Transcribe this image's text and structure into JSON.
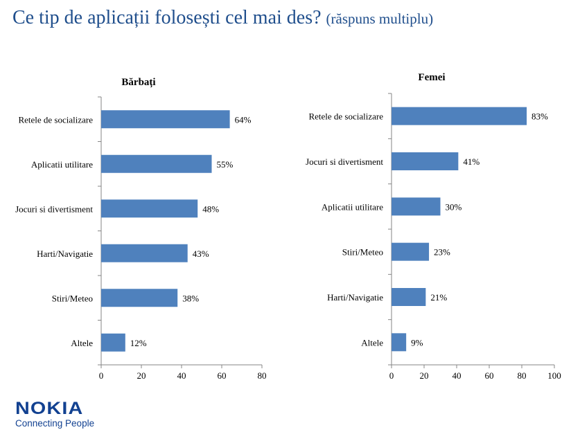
{
  "title": {
    "main": "Ce tip de aplicații folosești cel mai des?",
    "sub": "(răspuns multiplu)"
  },
  "logo": {
    "brand": "NOKIA",
    "tagline": "Connecting People"
  },
  "colors": {
    "bar": "#4f81bd",
    "title": "#1f4e8c",
    "axis": "#868686"
  },
  "chart_data": [
    {
      "type": "bar",
      "orientation": "horizontal",
      "title": "Bărbați",
      "categories": [
        "Retele de socializare",
        "Aplicatii utilitare",
        "Jocuri si divertisment",
        "Harti/Navigatie",
        "Stiri/Meteo",
        "Altele"
      ],
      "values": [
        64,
        55,
        48,
        43,
        38,
        12
      ],
      "data_labels": [
        "64%",
        "55%",
        "48%",
        "43%",
        "38%",
        "12%"
      ],
      "xlim": [
        0,
        80
      ],
      "xticks": [
        0,
        20,
        40,
        60,
        80
      ],
      "grid": false
    },
    {
      "type": "bar",
      "orientation": "horizontal",
      "title": "Femei",
      "categories": [
        "Retele de socializare",
        "Jocuri si divertisment",
        "Aplicatii utilitare",
        "Stiri/Meteo",
        "Harti/Navigatie",
        "Altele"
      ],
      "values": [
        83,
        41,
        30,
        23,
        21,
        9
      ],
      "data_labels": [
        "83%",
        "41%",
        "30%",
        "23%",
        "21%",
        "9%"
      ],
      "xlim": [
        0,
        100
      ],
      "xticks": [
        0,
        20,
        40,
        60,
        80,
        100
      ],
      "grid": false
    }
  ]
}
